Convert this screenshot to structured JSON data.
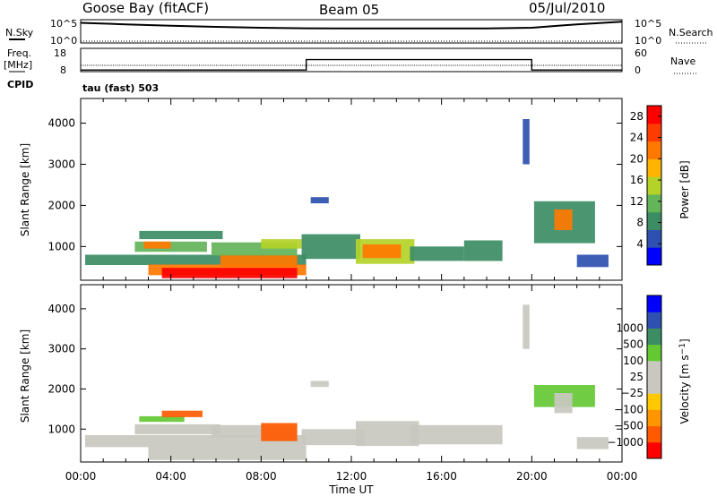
{
  "header": {
    "station": "Goose Bay (fitACF)",
    "beam": "Beam 05",
    "date": "05/Jul/2010"
  },
  "strip_labels": {
    "nsky": "N.Sky",
    "nsearch": "N.Search",
    "freq_line1": "Freq.",
    "freq_line2": "[MHz]",
    "nave": "Nave",
    "cpid": "CPID",
    "cpid_value": "tau (fast) 503",
    "noise_tick_top": "10^5",
    "noise_tick_bottom": "10^0",
    "freq_ticks": [
      "18",
      "8"
    ],
    "nave_ticks": [
      "60",
      "0"
    ]
  },
  "colors": {
    "power_scale": [
      "#0000ff",
      "#2e50b0",
      "#3c8c64",
      "#64b45a",
      "#b4d228",
      "#ffb400",
      "#ff7800",
      "#ff3c00",
      "#ff0000"
    ],
    "velocity_scale": [
      "#ff0000",
      "#ff5a00",
      "#ff9600",
      "#ffc800",
      "#c8c8c0",
      "#c8c8c0",
      "#64c832",
      "#3c8c64",
      "#2e50b0",
      "#0000ff"
    ],
    "grey": "#c8c8c0"
  },
  "chart_data": [
    {
      "type": "line",
      "panel": "noise",
      "series": [
        {
          "name": "N.Sky",
          "x": [
            "00:00",
            "02:00",
            "04:00",
            "06:00",
            "08:00",
            "10:00",
            "12:00",
            "14:00",
            "16:00",
            "18:00",
            "20:00",
            "22:00",
            "24:00"
          ],
          "values": [
            48000,
            20000,
            9000,
            5000,
            3000,
            2200,
            2000,
            2100,
            2100,
            2000,
            3000,
            20000,
            90000
          ]
        },
        {
          "name": "N.Search",
          "x": [
            "00:00",
            "24:00"
          ],
          "values": [
            1,
            1
          ]
        }
      ],
      "ylim": [
        1,
        100000
      ],
      "ylog": true
    },
    {
      "type": "line",
      "panel": "frequency",
      "series": [
        {
          "name": "Freq. [MHz]",
          "x": [
            "00:00",
            "24:00"
          ],
          "values": [
            10.5,
            10.5
          ]
        },
        {
          "name": "Nave",
          "x": [
            "00:00",
            "10:00",
            "10:00",
            "20:00",
            "20:00",
            "24:00"
          ],
          "values": [
            2,
            2,
            31,
            31,
            2,
            2
          ]
        }
      ],
      "ylim": [
        8,
        18
      ],
      "y2lim": [
        0,
        60
      ]
    },
    {
      "type": "heatmap",
      "panel": "power",
      "xlabel": "",
      "ylabel": "Slant Range [km]",
      "xlim": [
        "00:00",
        "24:00"
      ],
      "ylim": [
        180,
        4600
      ],
      "x_ticks": [
        "00:00",
        "04:00",
        "08:00",
        "12:00",
        "16:00",
        "20:00",
        "00:00"
      ],
      "y_ticks": [
        1000,
        2000,
        3000,
        4000
      ],
      "colorbar": {
        "label": "Power [dB]",
        "ticks": [
          "4",
          "8",
          "12",
          "16",
          "20",
          "24",
          "28"
        ],
        "min": 0,
        "max": 30
      },
      "regions": [
        {
          "t0": 0.2,
          "t1": 10.0,
          "r0": 550,
          "r1": 800,
          "value": 7
        },
        {
          "t0": 2.4,
          "t1": 5.6,
          "r0": 870,
          "r1": 1120,
          "value": 11
        },
        {
          "t0": 2.6,
          "t1": 6.3,
          "r0": 1180,
          "r1": 1380,
          "value": 9
        },
        {
          "t0": 2.8,
          "t1": 4.0,
          "r0": 950,
          "r1": 1120,
          "value": 22
        },
        {
          "t0": 3.0,
          "t1": 10.0,
          "r0": 300,
          "r1": 560,
          "value": 22
        },
        {
          "t0": 3.6,
          "t1": 9.6,
          "r0": 230,
          "r1": 480,
          "value": 28
        },
        {
          "t0": 6.2,
          "t1": 9.6,
          "r0": 500,
          "r1": 800,
          "value": 20
        },
        {
          "t0": 5.8,
          "t1": 9.6,
          "r0": 780,
          "r1": 1100,
          "value": 12
        },
        {
          "t0": 8.0,
          "t1": 9.8,
          "r0": 950,
          "r1": 1180,
          "value": 14
        },
        {
          "t0": 9.8,
          "t1": 12.4,
          "r0": 700,
          "r1": 1300,
          "value": 8
        },
        {
          "t0": 10.2,
          "t1": 11.0,
          "r0": 2050,
          "r1": 2200,
          "value": 6
        },
        {
          "t0": 12.2,
          "t1": 14.8,
          "r0": 580,
          "r1": 1180,
          "value": 14
        },
        {
          "t0": 12.5,
          "t1": 14.2,
          "r0": 720,
          "r1": 1050,
          "value": 20
        },
        {
          "t0": 14.6,
          "t1": 17.0,
          "r0": 650,
          "r1": 1000,
          "value": 8
        },
        {
          "t0": 17.0,
          "t1": 18.7,
          "r0": 650,
          "r1": 1150,
          "value": 7
        },
        {
          "t0": 20.1,
          "t1": 22.8,
          "r0": 1080,
          "r1": 2100,
          "value": 8
        },
        {
          "t0": 21.0,
          "t1": 21.8,
          "r0": 1400,
          "r1": 1900,
          "value": 22
        },
        {
          "t0": 22.0,
          "t1": 23.4,
          "r0": 500,
          "r1": 800,
          "value": 6
        },
        {
          "t0": 19.6,
          "t1": 19.9,
          "r0": 3000,
          "r1": 4100,
          "value": 6
        }
      ]
    },
    {
      "type": "heatmap",
      "panel": "velocity",
      "xlabel": "Time UT",
      "ylabel": "Slant Range [km]",
      "xlim": [
        "00:00",
        "24:00"
      ],
      "ylim": [
        180,
        4600
      ],
      "x_ticks": [
        "00:00",
        "04:00",
        "08:00",
        "12:00",
        "16:00",
        "20:00",
        "00:00"
      ],
      "y_ticks": [
        1000,
        2000,
        3000,
        4000
      ],
      "colorbar": {
        "label": "Velocity [m s^-1]",
        "ticks": [
          "-1000",
          "-500",
          "-100",
          "-25",
          "25",
          "100",
          "500",
          "1000"
        ]
      },
      "regions": [
        {
          "t0": 0.2,
          "t1": 10.0,
          "r0": 550,
          "r1": 850,
          "value": 0
        },
        {
          "t0": 3.0,
          "t1": 10.0,
          "r0": 230,
          "r1": 560,
          "value": 0
        },
        {
          "t0": 2.4,
          "t1": 6.2,
          "r0": 870,
          "r1": 1120,
          "value": 0
        },
        {
          "t0": 2.6,
          "t1": 4.6,
          "r0": 1180,
          "r1": 1320,
          "value": 30
        },
        {
          "t0": 3.6,
          "t1": 5.4,
          "r0": 1300,
          "r1": 1460,
          "value": -150
        },
        {
          "t0": 5.8,
          "t1": 9.6,
          "r0": 780,
          "r1": 1100,
          "value": 0
        },
        {
          "t0": 8.0,
          "t1": 9.6,
          "r0": 700,
          "r1": 1150,
          "value": -150
        },
        {
          "t0": 9.8,
          "t1": 12.6,
          "r0": 600,
          "r1": 1000,
          "value": 0
        },
        {
          "t0": 12.2,
          "t1": 15.0,
          "r0": 580,
          "r1": 1200,
          "value": 0
        },
        {
          "t0": 14.6,
          "t1": 18.7,
          "r0": 620,
          "r1": 1100,
          "value": 0
        },
        {
          "t0": 10.2,
          "t1": 11.0,
          "r0": 2050,
          "r1": 2200,
          "value": 0
        },
        {
          "t0": 20.1,
          "t1": 22.8,
          "r0": 1550,
          "r1": 2100,
          "value": 60
        },
        {
          "t0": 21.0,
          "t1": 21.8,
          "r0": 1400,
          "r1": 1900,
          "value": 0
        },
        {
          "t0": 22.0,
          "t1": 23.4,
          "r0": 500,
          "r1": 800,
          "value": 0
        },
        {
          "t0": 19.6,
          "t1": 19.9,
          "r0": 3000,
          "r1": 4100,
          "value": 0
        }
      ]
    }
  ],
  "axis": {
    "time_label": "Time UT",
    "range_label": "Slant Range [km]"
  }
}
